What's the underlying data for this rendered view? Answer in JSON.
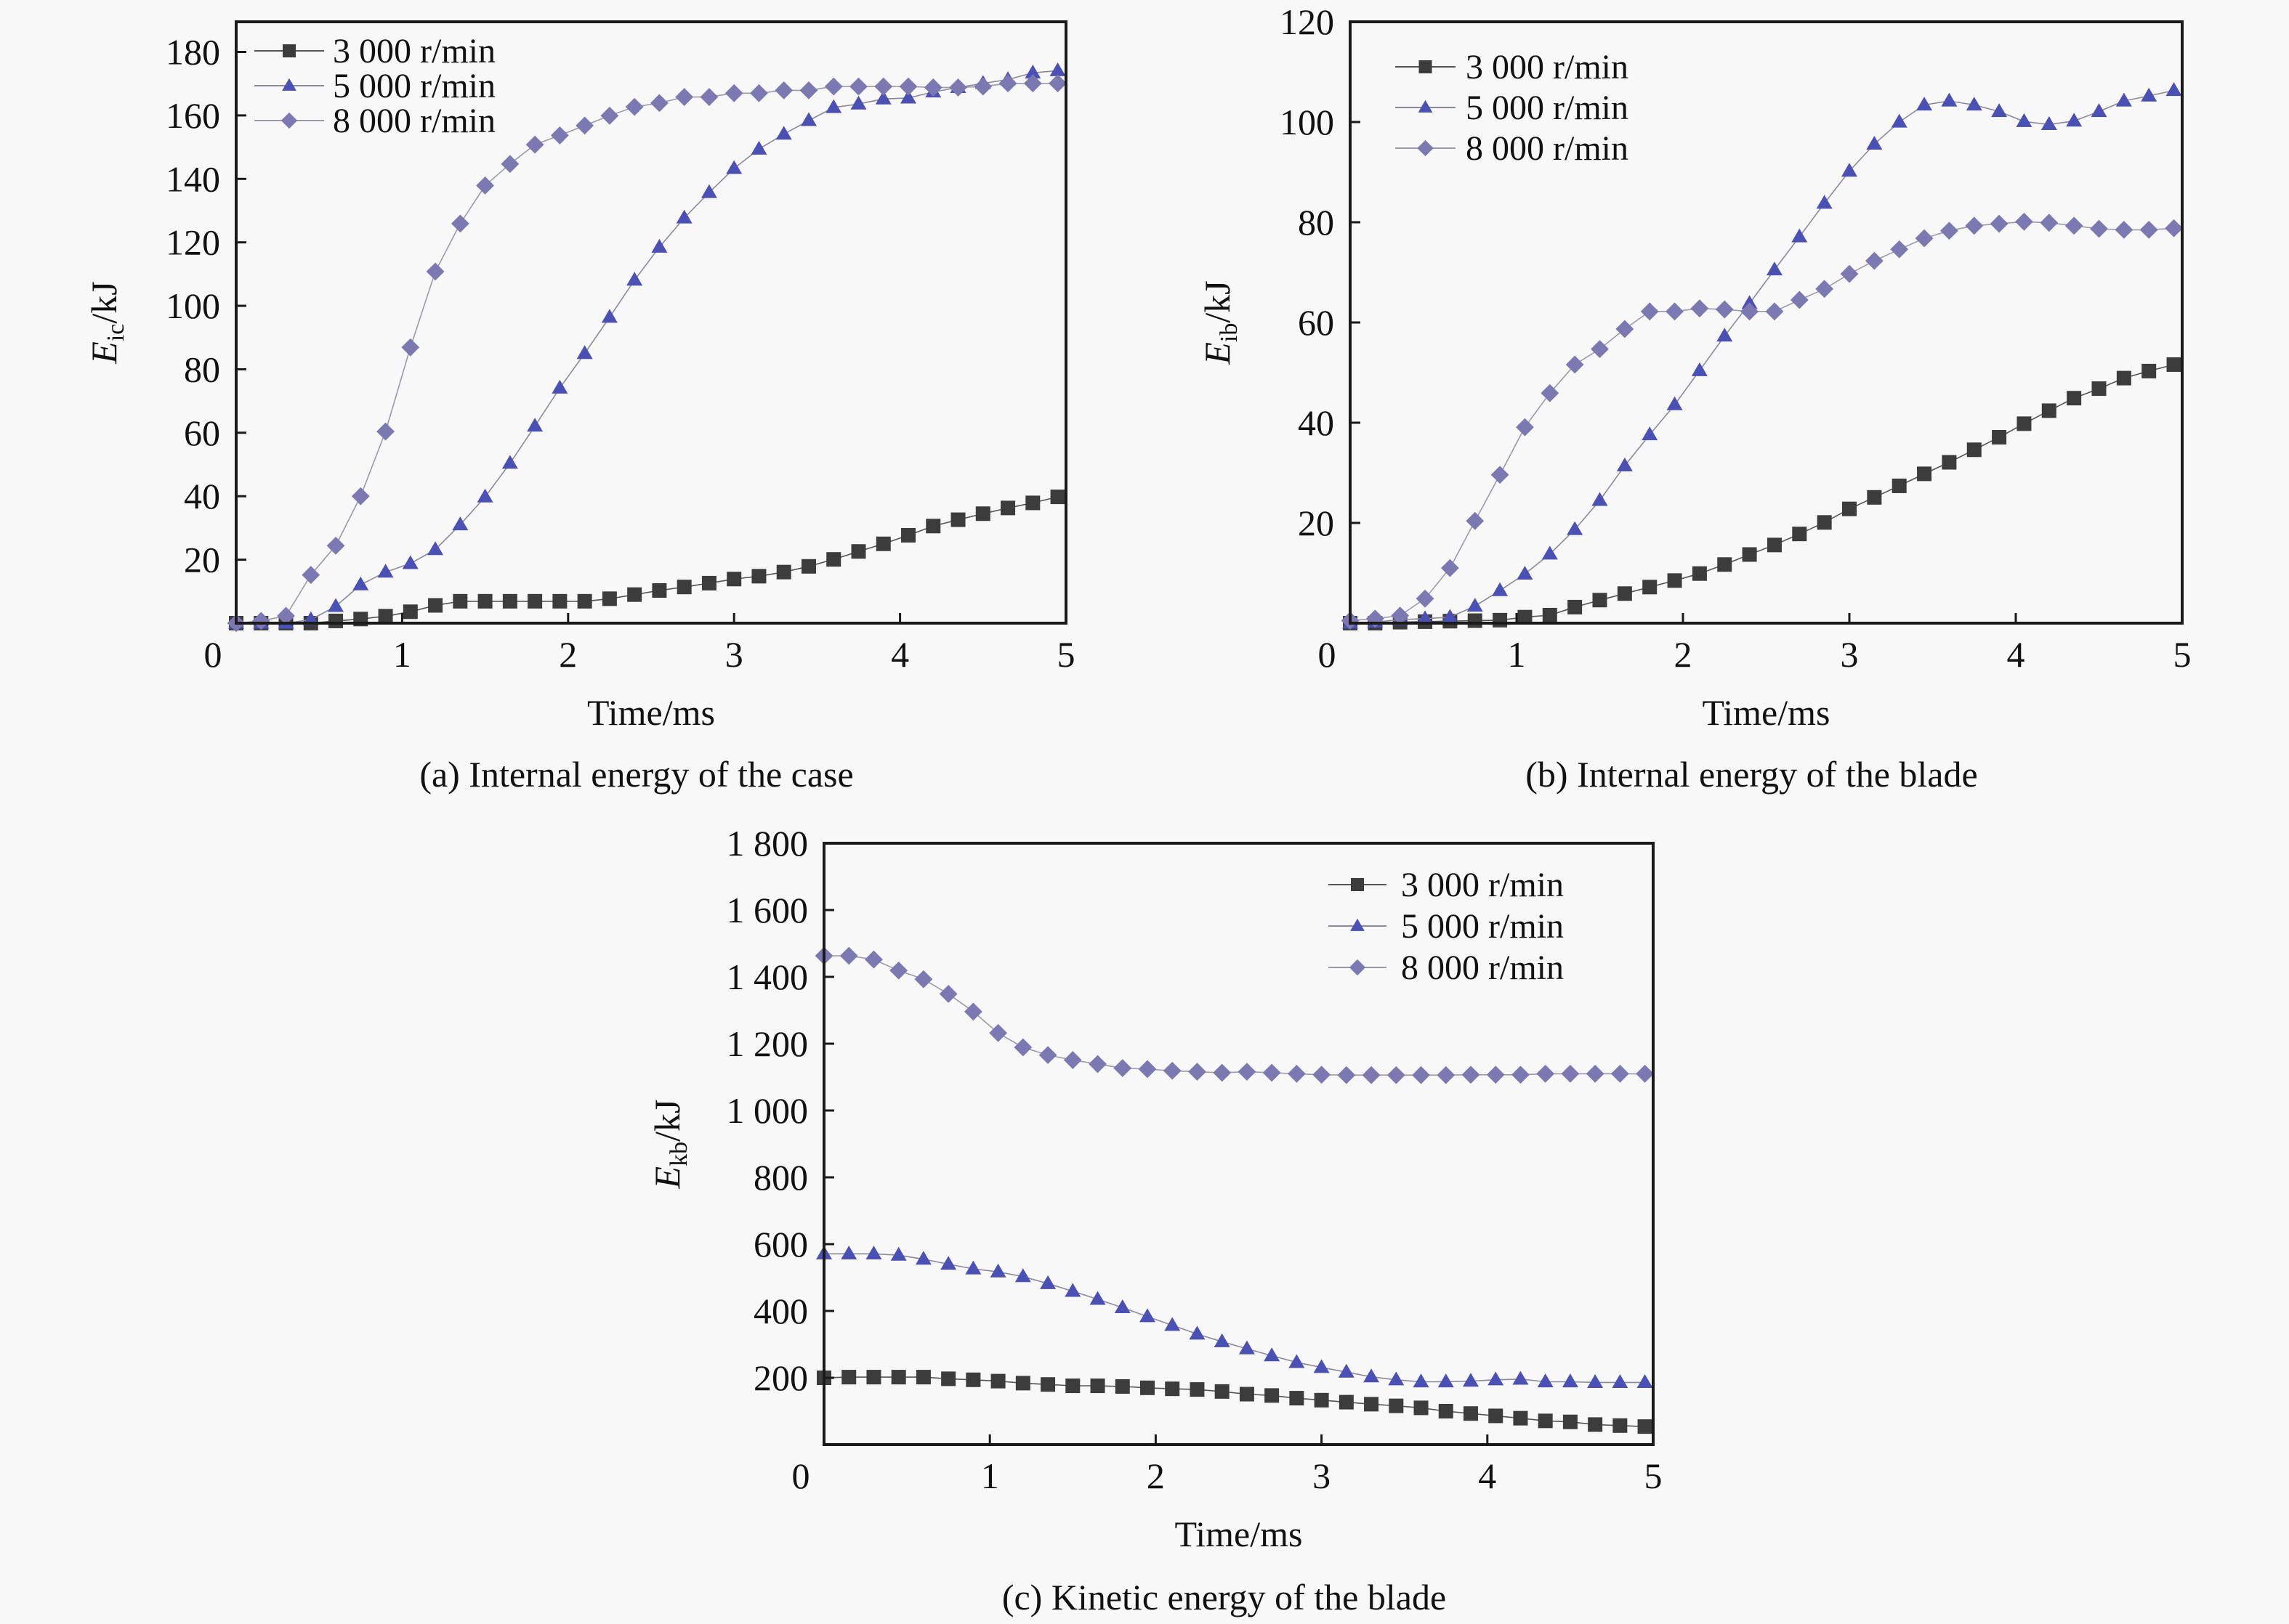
{
  "figure": {
    "background": "#f8f8f8",
    "series_styles": [
      {
        "name": "3 000 r/min",
        "marker": "square",
        "color": "#3c3c3c",
        "line_color": "#555555"
      },
      {
        "name": "5 000 r/min",
        "marker": "triangle",
        "color": "#4b50b4",
        "line_color": "#8a8a9a"
      },
      {
        "name": "8 000 r/min",
        "marker": "diamond",
        "color": "#7b78b2",
        "line_color": "#9a9aaa"
      }
    ]
  },
  "chart_data": [
    {
      "id": "a",
      "type": "line",
      "title": "",
      "caption": "(a) Internal energy of the case",
      "xlabel": "Time/ms",
      "ylabel_main": "E",
      "ylabel_sub": "ic",
      "ylabel_unit": "/kJ",
      "xlim": [
        0,
        5
      ],
      "ylim": [
        0,
        189.5
      ],
      "xticks": [
        0,
        1,
        2,
        3,
        4,
        5
      ],
      "xtick_labels": [
        "0",
        "1",
        "2",
        "3",
        "4",
        "5"
      ],
      "yticks": [
        20,
        40,
        60,
        80,
        100,
        120,
        140,
        160,
        180
      ],
      "ytick_labels": [
        "20",
        "40",
        "60",
        "80",
        "100",
        "120",
        "140",
        "160",
        "180"
      ],
      "legend_position": "top-left",
      "grid": false,
      "x": [
        0,
        0.15,
        0.3,
        0.45,
        0.6,
        0.75,
        0.9,
        1.05,
        1.2,
        1.35,
        1.5,
        1.65,
        1.8,
        1.95,
        2.1,
        2.25,
        2.4,
        2.55,
        2.7,
        2.85,
        3.0,
        3.15,
        3.3,
        3.45,
        3.6,
        3.75,
        3.9,
        4.05,
        4.2,
        4.35,
        4.5,
        4.65,
        4.8,
        4.95
      ],
      "series": [
        {
          "name": "3 000 r/min",
          "values": [
            0,
            0,
            0,
            0,
            0.7,
            1.3,
            2.2,
            3.6,
            5.6,
            6.9,
            6.9,
            6.9,
            6.9,
            6.9,
            6.9,
            7.7,
            9.0,
            10.3,
            11.4,
            12.6,
            13.9,
            14.8,
            16.1,
            17.9,
            20.1,
            22.6,
            25.0,
            27.7,
            30.6,
            32.6,
            34.5,
            36.3,
            37.9,
            39.8
          ]
        },
        {
          "name": "5 000 r/min",
          "values": [
            0,
            0,
            0,
            1.1,
            5.3,
            12.1,
            16.1,
            18.8,
            23.2,
            31.0,
            39.8,
            50.4,
            62.1,
            74.1,
            85.0,
            96.4,
            108.1,
            118.5,
            127.7,
            135.7,
            143.3,
            149.4,
            154.1,
            158.4,
            162.5,
            163.6,
            165.2,
            165.5,
            167.4,
            168.8,
            170.1,
            171.3,
            173.4,
            174.1
          ]
        },
        {
          "name": "8 000 r/min",
          "values": [
            0,
            0.7,
            2.3,
            15.2,
            24.4,
            40.0,
            60.4,
            86.9,
            110.8,
            125.9,
            137.9,
            144.7,
            150.8,
            153.7,
            156.8,
            159.9,
            162.7,
            163.9,
            165.8,
            165.8,
            167.0,
            167.0,
            167.9,
            167.9,
            169.1,
            169.1,
            169.1,
            169.1,
            168.8,
            168.8,
            169.1,
            170.1,
            170.1,
            170.1
          ]
        }
      ]
    },
    {
      "id": "b",
      "type": "line",
      "title": "",
      "caption": "(b) Internal energy of the blade",
      "xlabel": "Time/ms",
      "ylabel_main": "E",
      "ylabel_sub": "ib",
      "ylabel_unit": "/kJ",
      "xlim": [
        0,
        5
      ],
      "ylim": [
        0,
        120
      ],
      "xticks": [
        0,
        1,
        2,
        3,
        4,
        5
      ],
      "xtick_labels": [
        "0",
        "1",
        "2",
        "3",
        "4",
        "5"
      ],
      "yticks": [
        20,
        40,
        60,
        80,
        100,
        120
      ],
      "ytick_labels": [
        "20",
        "40",
        "60",
        "80",
        "100",
        "120"
      ],
      "legend_position": "top-left",
      "grid": false,
      "x": [
        0,
        0.15,
        0.3,
        0.45,
        0.6,
        0.75,
        0.9,
        1.05,
        1.2,
        1.35,
        1.5,
        1.65,
        1.8,
        1.95,
        2.1,
        2.25,
        2.4,
        2.55,
        2.7,
        2.85,
        3.0,
        3.15,
        3.3,
        3.45,
        3.6,
        3.75,
        3.9,
        4.05,
        4.2,
        4.35,
        4.5,
        4.65,
        4.8,
        4.95
      ],
      "series": [
        {
          "name": "3 000 r/min",
          "values": [
            0,
            0,
            0.2,
            0.3,
            0.4,
            0.5,
            0.6,
            1.2,
            1.6,
            3.2,
            4.6,
            5.9,
            7.2,
            8.5,
            9.9,
            11.7,
            13.7,
            15.6,
            17.8,
            20.1,
            22.8,
            25.1,
            27.4,
            29.8,
            32.1,
            34.6,
            37.1,
            39.8,
            42.4,
            44.9,
            46.8,
            48.9,
            50.3,
            51.6
          ]
        },
        {
          "name": "5 000 r/min",
          "values": [
            0,
            0.2,
            0.7,
            0.9,
            1.2,
            3.4,
            6.5,
            9.8,
            13.8,
            18.7,
            24.5,
            31.4,
            37.6,
            43.6,
            50.4,
            57.3,
            63.8,
            70.5,
            77.1,
            83.8,
            90.2,
            95.6,
            100.0,
            103.4,
            104.2,
            103.4,
            102.1,
            100.1,
            99.5,
            100.2,
            102.1,
            104.2,
            105.2,
            106.3
          ]
        },
        {
          "name": "8 000 r/min",
          "values": [
            0.5,
            0.9,
            1.5,
            4.9,
            11.0,
            20.4,
            29.6,
            39.1,
            45.9,
            51.6,
            54.7,
            58.7,
            62.2,
            62.2,
            62.8,
            62.6,
            62.2,
            62.2,
            64.5,
            66.7,
            69.7,
            72.3,
            74.6,
            76.8,
            78.3,
            79.3,
            79.7,
            80.1,
            79.9,
            79.3,
            78.7,
            78.5,
            78.5,
            78.8
          ]
        }
      ]
    },
    {
      "id": "c",
      "type": "line",
      "title": "",
      "caption": "(c) Kinetic energy of the blade",
      "xlabel": "Time/ms",
      "ylabel_main": "E",
      "ylabel_sub": "kb",
      "ylabel_unit": "/kJ",
      "xlim": [
        0,
        5
      ],
      "ylim": [
        0,
        1800
      ],
      "xticks": [
        0,
        1,
        2,
        3,
        4,
        5
      ],
      "xtick_labels": [
        "0",
        "1",
        "2",
        "3",
        "4",
        "5"
      ],
      "yticks": [
        200,
        400,
        600,
        800,
        1000,
        1200,
        1400,
        1600,
        1800
      ],
      "ytick_labels": [
        "200",
        "400",
        "600",
        "800",
        "1 000",
        "1 200",
        "1 400",
        "1 600",
        "1 800"
      ],
      "legend_position": "top-right",
      "grid": false,
      "x": [
        0,
        0.15,
        0.3,
        0.45,
        0.6,
        0.75,
        0.9,
        1.05,
        1.2,
        1.35,
        1.5,
        1.65,
        1.8,
        1.95,
        2.1,
        2.25,
        2.4,
        2.55,
        2.7,
        2.85,
        3.0,
        3.15,
        3.3,
        3.45,
        3.6,
        3.75,
        3.9,
        4.05,
        4.2,
        4.35,
        4.5,
        4.65,
        4.8,
        4.95
      ],
      "series": [
        {
          "name": "3 000 r/min",
          "values": [
            200,
            202,
            202,
            202,
            202,
            197,
            194,
            190,
            184,
            180,
            176,
            176,
            174,
            170,
            167,
            165,
            159,
            151,
            147,
            139,
            133,
            127,
            121,
            116,
            110,
            100,
            93,
            86,
            79,
            71,
            68,
            60,
            57,
            54
          ]
        },
        {
          "name": "5 000 r/min",
          "values": [
            571,
            571,
            571,
            567,
            555,
            540,
            526,
            517,
            503,
            482,
            459,
            435,
            410,
            383,
            357,
            331,
            308,
            287,
            266,
            246,
            231,
            217,
            203,
            194,
            188,
            188,
            190,
            194,
            196,
            188,
            188,
            186,
            186,
            186
          ]
        },
        {
          "name": "8 000 r/min",
          "values": [
            1463,
            1463,
            1452,
            1419,
            1393,
            1349,
            1296,
            1232,
            1189,
            1166,
            1151,
            1139,
            1127,
            1124,
            1119,
            1116,
            1113,
            1116,
            1113,
            1110,
            1107,
            1106,
            1106,
            1106,
            1106,
            1106,
            1107,
            1107,
            1107,
            1110,
            1110,
            1110,
            1110,
            1110
          ]
        }
      ]
    }
  ]
}
